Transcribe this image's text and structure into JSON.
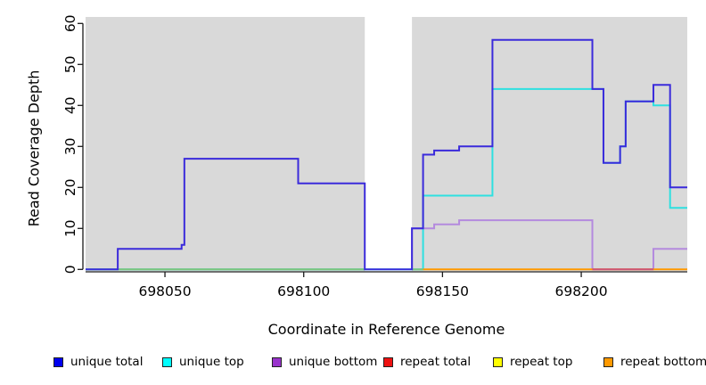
{
  "page": {
    "background": "#ffffff"
  },
  "chart_data": {
    "type": "step-line",
    "title": "",
    "xlabel": "Coordinate in Reference Genome",
    "ylabel": "Read Coverage Depth",
    "xlim": [
      698021.4,
      698238.2
    ],
    "ylim": [
      0,
      62
    ],
    "xticks": [
      698050,
      698100,
      698150,
      698200
    ],
    "yticks": [
      0,
      10,
      20,
      30,
      40,
      50,
      60
    ],
    "grid": "off",
    "plot_background": "#d9d9d9",
    "masked_region": {
      "start": 698122,
      "end": 698139,
      "color": "#ffffff"
    },
    "series": [
      {
        "name": "unique total",
        "color": "#3b2bdb",
        "steps": [
          [
            698021.4,
            0
          ],
          [
            698033,
            5
          ],
          [
            698056,
            6
          ],
          [
            698057,
            27
          ],
          [
            698098,
            21
          ],
          [
            698122,
            0
          ],
          [
            698139,
            10
          ],
          [
            698143,
            28
          ],
          [
            698147,
            29
          ],
          [
            698156,
            30
          ],
          [
            698168,
            56
          ],
          [
            698204,
            44
          ],
          [
            698208,
            26
          ],
          [
            698214,
            30
          ],
          [
            698216,
            41
          ],
          [
            698226,
            45
          ],
          [
            698232,
            20
          ]
        ],
        "end": 698238.2
      },
      {
        "name": "unique top",
        "color": "#2ee0e0",
        "steps": [
          [
            698021.4,
            0
          ],
          [
            698143,
            18
          ],
          [
            698168,
            44
          ],
          [
            698208,
            26
          ],
          [
            698214,
            30
          ],
          [
            698216,
            41
          ],
          [
            698226,
            40
          ],
          [
            698232,
            15
          ]
        ],
        "end": 698238.2
      },
      {
        "name": "unique bottom",
        "color": "#b48ade",
        "steps": [
          [
            698139,
            10
          ],
          [
            698147,
            11
          ],
          [
            698156,
            12
          ],
          [
            698204,
            0
          ],
          [
            698226,
            5
          ]
        ],
        "end": 698238.2
      },
      {
        "name": "repeat total",
        "color": "#ee1111",
        "steps": [],
        "end": null,
        "note": "overplotted at depth 0"
      },
      {
        "name": "repeat top",
        "color": "#eeee00",
        "steps": [],
        "end": null,
        "note": "overplotted at depth 0"
      },
      {
        "name": "repeat bottom",
        "color": "#ff9900",
        "steps": [
          [
            698143,
            0
          ]
        ],
        "end": 698238.2
      }
    ],
    "overlap_overlays": [
      {
        "name": "blended zero line (top strands)",
        "color": "#7cc47c",
        "depth": 0,
        "segments": [
          [
            698021.4,
            698122
          ],
          [
            698139,
            698143
          ]
        ]
      },
      {
        "name": "blended zero line (bottom strands)",
        "color": "#cc5577",
        "depth": 0,
        "segments": [
          [
            698204,
            698226
          ]
        ]
      }
    ],
    "legend": [
      {
        "label": "unique total",
        "color": "#0000ee"
      },
      {
        "label": "unique top",
        "color": "#00ffff"
      },
      {
        "label": "unique bottom",
        "color": "#9933cc"
      },
      {
        "label": "repeat total",
        "color": "#ee1111"
      },
      {
        "label": "repeat top",
        "color": "#ffff00"
      },
      {
        "label": "repeat bottom",
        "color": "#ff9900"
      }
    ],
    "legend_position": "bottom"
  }
}
